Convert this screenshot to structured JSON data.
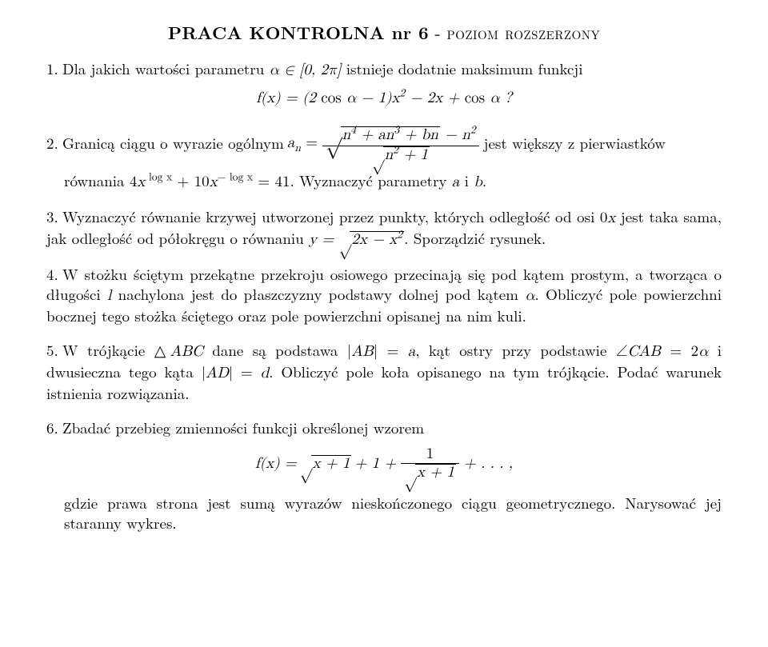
{
  "title": {
    "bold": "PRACA KONTROLNA nr 6",
    "dash": " - ",
    "sc": "poziom rozszerzony"
  },
  "p1": {
    "num": "1.",
    "text_a": "Dla jakich wartości parametru ",
    "alpha_range": "α ∈ [0, 2π]",
    "text_b": " istnieje dodatnie maksimum funkcji",
    "eq_lhs": "f(x) = (2",
    "eq_cos": " cos ",
    "eq_mid": "α − 1)x",
    "eq_sq": "2",
    "eq_rest": " − 2x + ",
    "eq_cos2": "cos ",
    "eq_alpha": "α ?"
  },
  "p2": {
    "num": "2.",
    "text_a": "Granicą ciągu o wyrazie ogólnym ",
    "an": "a",
    "an_sub": "n",
    "eq": " = ",
    "frac_num_a": "n",
    "frac_num_exp4": "4",
    "frac_num_b": " + an",
    "frac_num_exp3": "3",
    "frac_num_c": " + bn",
    "frac_num_minus": " − n",
    "frac_num_exp2": "2",
    "frac_den_a": "n",
    "frac_den_exp2": "2",
    "frac_den_b": " + 1",
    "text_b": " jest większy z pierwiastków",
    "line2_a": "równania 4",
    "line2_x": "x",
    "line2_exp1": " log x",
    "line2_b": " + 10",
    "line2_exp2": "− log x",
    "line2_c": " = 41. Wyznaczyć parametry ",
    "line2_ab": "a",
    "line2_and": " i ",
    "line2_b2": "b",
    "line2_dot": "."
  },
  "p3": {
    "num": "3.",
    "text_a": "Wyznaczyć równanie krzywej utworzonej przez punkty, których odległość od osi 0",
    "x": "x",
    "text_b": " jest taka sama, jak odległość od półokręgu o równaniu  ",
    "eq_lhs": "y = ",
    "rad_a": "2x − x",
    "rad_exp": "2",
    "text_c": ". Sporządzić rysunek."
  },
  "p4": {
    "num": "4.",
    "text_a": "W stożku ściętym przekątne przekroju osiowego przecinają się pod kątem prostym, a tworząca o długości ",
    "l": "l",
    "text_b": " nachylona jest do płaszczyzny podstawy dolnej pod kątem ",
    "alpha": "α",
    "text_c": ". Obliczyć pole powierzchni bocznej tego stożka ściętego oraz pole powierzchni opisanej na nim kuli."
  },
  "p5": {
    "num": "5.",
    "text_a": "W trójkącie △",
    "ABC": "ABC",
    "text_b": " dane są podstawa |",
    "AB": "AB",
    "text_c": "| = ",
    "a": "a",
    "text_d": ", kąt ostry przy podstawie ",
    "angle": "∠",
    "CAB": "CAB",
    "text_e": " = 2",
    "alpha": "α",
    "text_f": " i dwusieczna tego kąta |",
    "AD": "AD",
    "text_g": "| = ",
    "d": "d",
    "text_h": ". Obliczyć pole koła opisanego na tym trójkącie. Podać warunek istnienia rozwiązania."
  },
  "p6": {
    "num": "6.",
    "text_a": "Zbadać przebieg zmienności funkcji określonej wzorem",
    "eq_lhs": "f(x) = ",
    "rad1": "x + 1",
    "plus1": " + 1 + ",
    "frac_num": "1",
    "frac_den_rad": "x + 1",
    "tail": " + . . . ,",
    "text_b": "gdzie prawa strona jest sumą wyrazów nieskończonego ciągu geometrycznego. Narysować jej staranny wykres."
  }
}
